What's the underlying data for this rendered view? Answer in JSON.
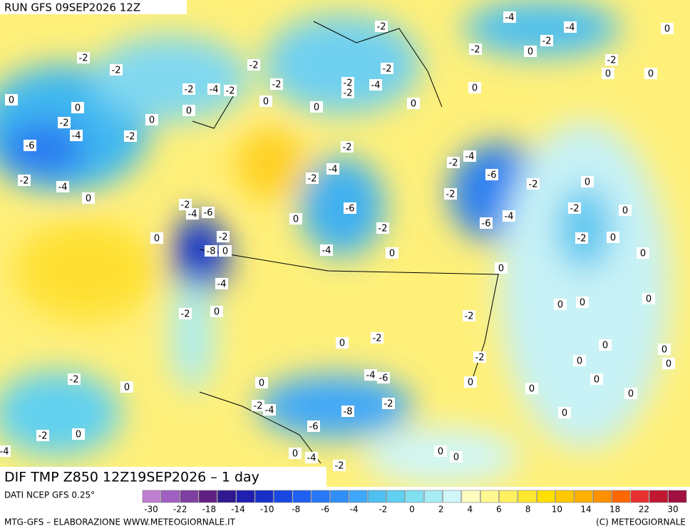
{
  "header": {
    "run": "RUN GFS 09SEP2026 12Z",
    "title": "DIF TMP Z850 12Z19SEP2026 – 1 day",
    "source": "DATI NCEP GFS 0.25°",
    "credit": "MTG-GFS – ELABORAZIONE WWW.METEOGIORNALE.IT",
    "copyright": "(C) METEOGIORNALE"
  },
  "legend": {
    "colors": [
      "#c080d0",
      "#a060c0",
      "#8040a0",
      "#602080",
      "#301890",
      "#2020b0",
      "#1830c8",
      "#1848e0",
      "#2060f0",
      "#2878f8",
      "#3090f8",
      "#40a8f8",
      "#50c0f0",
      "#60d0f0",
      "#80e0f0",
      "#a8ecf4",
      "#d0f6f8",
      "#fffcc0",
      "#fff890",
      "#fff060",
      "#ffe830",
      "#ffe000",
      "#ffc800",
      "#ffb000",
      "#ff9000",
      "#ff6800",
      "#e83030",
      "#c01830",
      "#a01040"
    ],
    "ticks": [
      -30,
      -22,
      -18,
      -14,
      -10,
      -8,
      -6,
      -4,
      -2,
      0,
      2,
      4,
      6,
      8,
      10,
      14,
      18,
      22,
      30
    ]
  },
  "map_labels": [
    "-2",
    "-2",
    "-2",
    "-4",
    "-2",
    "-2",
    "-2",
    "-2",
    "-2",
    "-2",
    "-2",
    "-4",
    "-4",
    "-4",
    "-2",
    "-2",
    "-2",
    "0",
    "0",
    "0",
    "0",
    "0",
    "0",
    "0",
    "-2",
    "-4",
    "-2",
    "-6",
    "-2",
    "-4",
    "0",
    "0",
    "0",
    "0",
    "0",
    "0",
    "-2",
    "-4",
    "-2",
    "-6",
    "-4",
    "-2",
    "-2",
    "-2",
    "-6",
    "-2",
    "-4",
    "0",
    "-6",
    "-4",
    "-2",
    "-2",
    "0",
    "0",
    "-2",
    "-4",
    "-6",
    "-2",
    "-8",
    "0",
    "-4",
    "-2",
    "0",
    "0",
    "0",
    "-2",
    "-2",
    "-2",
    "-4",
    "-6",
    "-2",
    "-8",
    "-6",
    "-2",
    "-4",
    "-2",
    "-2",
    "-4",
    "-4",
    "-2",
    "0",
    "0",
    "0",
    "0",
    "0",
    "0",
    "0",
    "0",
    "0",
    "0",
    "0",
    "0",
    "0",
    "0",
    "0",
    "0",
    "0",
    "0",
    "0",
    "0",
    "0",
    "0"
  ]
}
